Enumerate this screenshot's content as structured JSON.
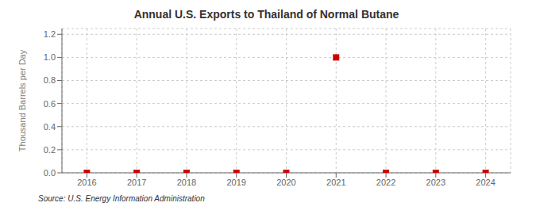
{
  "chart_data": {
    "type": "scatter",
    "title": "Annual U.S. Exports to Thailand of Normal Butane",
    "ylabel": "Thousand Barrels per Day",
    "annotations": [
      "Source: U.S. Energy Information Administration"
    ],
    "x": [
      2016,
      2017,
      2018,
      2019,
      2020,
      2021,
      2022,
      2023,
      2024
    ],
    "values": [
      0.0,
      0.0,
      0.0,
      0.0,
      0.0,
      1.0,
      0.0,
      0.0,
      0.0
    ],
    "xlim": [
      2015.5,
      2024.5
    ],
    "ylim": [
      0.0,
      1.25
    ],
    "xticks": [
      2016,
      2017,
      2018,
      2019,
      2020,
      2021,
      2022,
      2023,
      2024
    ],
    "yticks": [
      {
        "value": 0,
        "label": "0.0"
      },
      0.2,
      0.4,
      0.6,
      0.8,
      {
        "value": 1,
        "label": "1.0"
      },
      1.2
    ],
    "color": "#cc0000",
    "marker": "square",
    "grid": true
  }
}
